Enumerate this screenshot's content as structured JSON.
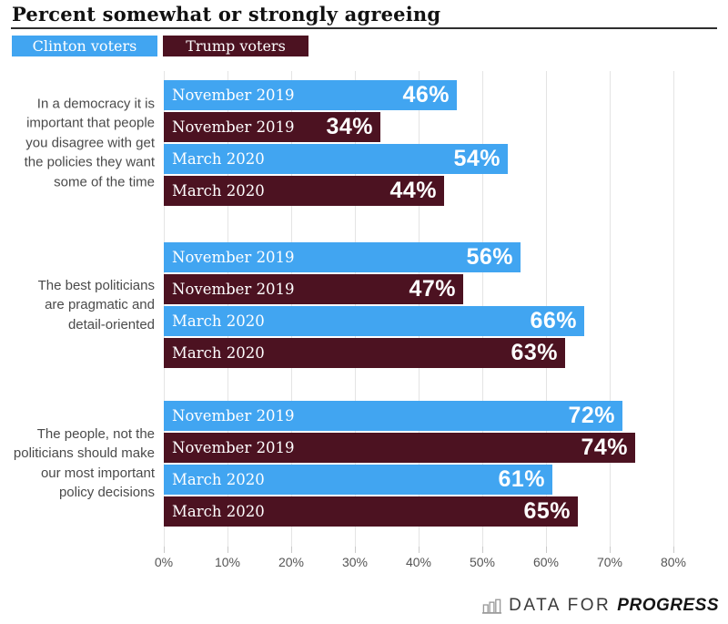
{
  "title": "Percent somewhat or strongly agreeing",
  "legend": [
    {
      "label": "Clinton voters",
      "color": "#41A5F1"
    },
    {
      "label": "Trump voters",
      "color": "#4C1221"
    }
  ],
  "chart_data": {
    "type": "bar",
    "orientation": "horizontal",
    "title": "Percent somewhat or strongly agreeing",
    "unit": "%",
    "xlim": [
      0,
      80
    ],
    "x_ticks": [
      "0%",
      "10%",
      "20%",
      "30%",
      "40%",
      "50%",
      "60%",
      "70%",
      "80%"
    ],
    "grid": true,
    "legend_position": "top-left",
    "series_names": [
      "Clinton voters",
      "Trump voters"
    ],
    "groups": [
      {
        "category": "In a democracy it is important that people you disagree with get the policies they want some of the time",
        "category_lines": [
          "In a democracy it is",
          "important that people",
          "you disagree with get",
          "the policies they want",
          "some of the time"
        ],
        "bars": [
          {
            "series": "Clinton voters",
            "label": "November 2019",
            "value": 46,
            "display": "46%"
          },
          {
            "series": "Trump voters",
            "label": "November 2019",
            "value": 34,
            "display": "34%"
          },
          {
            "series": "Clinton voters",
            "label": "March 2020",
            "value": 54,
            "display": "54%"
          },
          {
            "series": "Trump voters",
            "label": "March 2020",
            "value": 44,
            "display": "44%"
          }
        ]
      },
      {
        "category": "The best politicians are pragmatic and detail-oriented",
        "category_lines": [
          "The best politicians",
          "are pragmatic and",
          "detail-oriented"
        ],
        "bars": [
          {
            "series": "Clinton voters",
            "label": "November 2019",
            "value": 56,
            "display": "56%"
          },
          {
            "series": "Trump voters",
            "label": "November 2019",
            "value": 47,
            "display": "47%"
          },
          {
            "series": "Clinton voters",
            "label": "March 2020",
            "value": 66,
            "display": "66%"
          },
          {
            "series": "Trump voters",
            "label": "March 2020",
            "value": 63,
            "display": "63%"
          }
        ]
      },
      {
        "category": "The people, not the politicians should make our most important policy decisions",
        "category_lines": [
          "The people, not the",
          "politicians should make",
          "our most important",
          "policy decisions"
        ],
        "bars": [
          {
            "series": "Clinton voters",
            "label": "November 2019",
            "value": 72,
            "display": "72%"
          },
          {
            "series": "Trump voters",
            "label": "November 2019",
            "value": 74,
            "display": "74%"
          },
          {
            "series": "Clinton voters",
            "label": "March 2020",
            "value": 61,
            "display": "61%"
          },
          {
            "series": "Trump voters",
            "label": "March 2020",
            "value": 65,
            "display": "65%"
          }
        ]
      }
    ]
  },
  "footer": {
    "brand_light": "DATA FOR",
    "brand_bold": "PROGRESS"
  },
  "colors": {
    "gridline": "#E4E4E4",
    "tick": "#C9C9C9",
    "axis_text": "#555555",
    "category_text": "#4A4A4A",
    "title_text": "#111111",
    "rule": "#2E2E2E"
  }
}
